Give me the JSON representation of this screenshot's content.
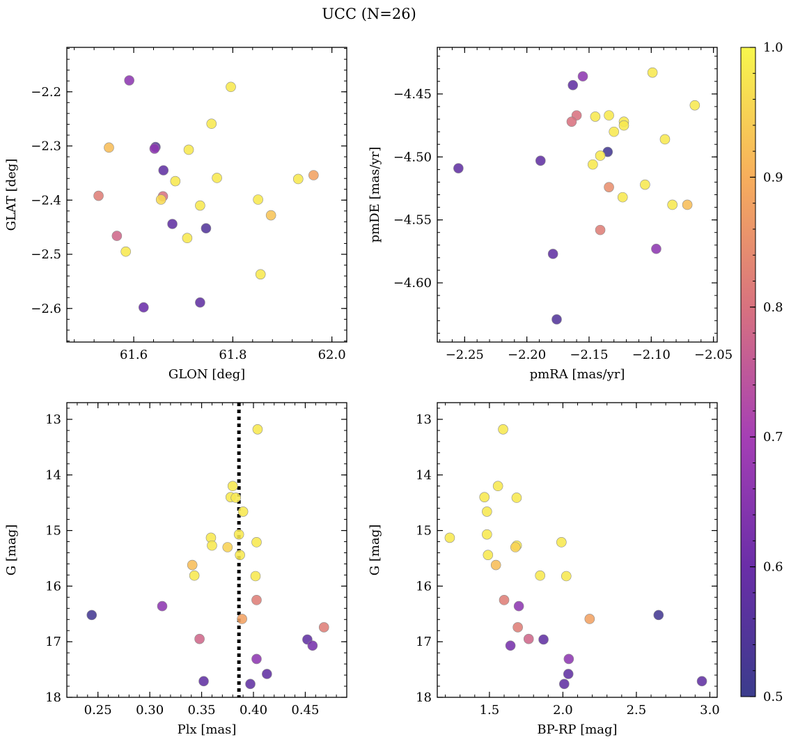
{
  "figure": {
    "title": "UCC (N=26)"
  },
  "chart_data": [
    {
      "type": "scatter",
      "panel": "top-left",
      "xlabel": "GLON [deg]",
      "ylabel": "GLAT [deg]",
      "xlim": [
        61.465,
        62.03
      ],
      "ylim": [
        -2.662,
        -2.118
      ],
      "x_inverted": false,
      "y_inverted": false,
      "xticks": [
        61.6,
        61.8,
        62.0
      ],
      "xtick_labels": [
        "61.6",
        "61.8",
        "62.0"
      ],
      "yticks": [
        -2.2,
        -2.3,
        -2.4,
        -2.5,
        -2.6
      ],
      "ytick_labels": [
        "−2.2",
        "−2.3",
        "−2.4",
        "−2.5",
        "−2.6"
      ],
      "points": [
        {
          "x": 61.591,
          "y": -2.179,
          "c": 0.66
        },
        {
          "x": 61.796,
          "y": -2.191,
          "c": 0.98
        },
        {
          "x": 61.757,
          "y": -2.259,
          "c": 0.98
        },
        {
          "x": 61.644,
          "y": -2.302,
          "c": 0.55
        },
        {
          "x": 61.642,
          "y": -2.305,
          "c": 0.66
        },
        {
          "x": 61.55,
          "y": -2.303,
          "c": 0.92
        },
        {
          "x": 61.711,
          "y": -2.307,
          "c": 0.98
        },
        {
          "x": 61.66,
          "y": -2.345,
          "c": 0.58
        },
        {
          "x": 61.963,
          "y": -2.354,
          "c": 0.88
        },
        {
          "x": 61.932,
          "y": -2.361,
          "c": 0.98
        },
        {
          "x": 61.768,
          "y": -2.359,
          "c": 0.98
        },
        {
          "x": 61.684,
          "y": -2.365,
          "c": 0.98
        },
        {
          "x": 61.659,
          "y": -2.393,
          "c": 0.8
        },
        {
          "x": 61.529,
          "y": -2.392,
          "c": 0.82
        },
        {
          "x": 61.655,
          "y": -2.399,
          "c": 0.96
        },
        {
          "x": 61.851,
          "y": -2.399,
          "c": 0.98
        },
        {
          "x": 61.734,
          "y": -2.41,
          "c": 0.98
        },
        {
          "x": 61.877,
          "y": -2.428,
          "c": 0.93
        },
        {
          "x": 61.678,
          "y": -2.444,
          "c": 0.58
        },
        {
          "x": 61.746,
          "y": -2.452,
          "c": 0.55
        },
        {
          "x": 61.566,
          "y": -2.466,
          "c": 0.78
        },
        {
          "x": 61.708,
          "y": -2.47,
          "c": 0.98
        },
        {
          "x": 61.584,
          "y": -2.495,
          "c": 0.98
        },
        {
          "x": 61.856,
          "y": -2.537,
          "c": 0.98
        },
        {
          "x": 61.734,
          "y": -2.589,
          "c": 0.58
        },
        {
          "x": 61.62,
          "y": -2.598,
          "c": 0.6
        }
      ]
    },
    {
      "type": "scatter",
      "panel": "top-right",
      "xlabel": "pmRA [mas/yr]",
      "ylabel": "pmDE [mas/yr]",
      "xlim": [
        -2.272,
        -2.047
      ],
      "ylim": [
        -4.647,
        -4.413
      ],
      "x_inverted": false,
      "y_inverted": false,
      "xticks": [
        -2.25,
        -2.2,
        -2.15,
        -2.1,
        -2.05
      ],
      "xtick_labels": [
        "−2.25",
        "−2.20",
        "−2.15",
        "−2.10",
        "−2.05"
      ],
      "yticks": [
        -4.45,
        -4.5,
        -4.55,
        -4.6
      ],
      "ytick_labels": [
        "−4.45",
        "−4.50",
        "−4.55",
        "−4.60"
      ],
      "points": [
        {
          "x": -2.099,
          "y": -4.433,
          "c": 0.98
        },
        {
          "x": -2.155,
          "y": -4.436,
          "c": 0.66
        },
        {
          "x": -2.163,
          "y": -4.443,
          "c": 0.58
        },
        {
          "x": -2.065,
          "y": -4.459,
          "c": 0.98
        },
        {
          "x": -2.16,
          "y": -4.467,
          "c": 0.8
        },
        {
          "x": -2.164,
          "y": -4.472,
          "c": 0.8
        },
        {
          "x": -2.145,
          "y": -4.468,
          "c": 0.98
        },
        {
          "x": -2.134,
          "y": -4.467,
          "c": 0.98
        },
        {
          "x": -2.122,
          "y": -4.472,
          "c": 0.98
        },
        {
          "x": -2.122,
          "y": -4.475,
          "c": 0.98
        },
        {
          "x": -2.13,
          "y": -4.48,
          "c": 0.98
        },
        {
          "x": -2.089,
          "y": -4.486,
          "c": 0.98
        },
        {
          "x": -2.135,
          "y": -4.496,
          "c": 0.52
        },
        {
          "x": -2.141,
          "y": -4.499,
          "c": 0.98
        },
        {
          "x": -2.189,
          "y": -4.503,
          "c": 0.58
        },
        {
          "x": -2.147,
          "y": -4.506,
          "c": 0.98
        },
        {
          "x": -2.255,
          "y": -4.509,
          "c": 0.58
        },
        {
          "x": -2.105,
          "y": -4.522,
          "c": 0.98
        },
        {
          "x": -2.134,
          "y": -4.524,
          "c": 0.85
        },
        {
          "x": -2.123,
          "y": -4.532,
          "c": 0.98
        },
        {
          "x": -2.083,
          "y": -4.538,
          "c": 0.98
        },
        {
          "x": -2.071,
          "y": -4.538,
          "c": 0.92
        },
        {
          "x": -2.141,
          "y": -4.558,
          "c": 0.82
        },
        {
          "x": -2.096,
          "y": -4.573,
          "c": 0.66
        },
        {
          "x": -2.179,
          "y": -4.577,
          "c": 0.58
        },
        {
          "x": -2.176,
          "y": -4.629,
          "c": 0.55
        }
      ]
    },
    {
      "type": "scatter",
      "panel": "bottom-left",
      "xlabel": "Plx [mas]",
      "ylabel": "G [mag]",
      "xlim": [
        0.22,
        0.49
      ],
      "ylim": [
        18.0,
        12.7
      ],
      "x_inverted": false,
      "y_inverted": true,
      "xticks": [
        0.25,
        0.3,
        0.35,
        0.4,
        0.45
      ],
      "xtick_labels": [
        "0.25",
        "0.30",
        "0.35",
        "0.40",
        "0.45"
      ],
      "yticks": [
        13,
        14,
        15,
        16,
        17,
        18
      ],
      "ytick_labels": [
        "13",
        "14",
        "15",
        "16",
        "17",
        "18"
      ],
      "reference_line": {
        "x": 0.386,
        "style": "dotted"
      },
      "points": [
        {
          "x": 0.404,
          "y": 13.18,
          "c": 0.98
        },
        {
          "x": 0.38,
          "y": 14.2,
          "c": 0.98
        },
        {
          "x": 0.378,
          "y": 14.4,
          "c": 0.98
        },
        {
          "x": 0.383,
          "y": 14.41,
          "c": 0.98
        },
        {
          "x": 0.39,
          "y": 14.66,
          "c": 0.98
        },
        {
          "x": 0.386,
          "y": 15.07,
          "c": 0.98
        },
        {
          "x": 0.359,
          "y": 15.13,
          "c": 0.98
        },
        {
          "x": 0.403,
          "y": 15.21,
          "c": 0.98
        },
        {
          "x": 0.36,
          "y": 15.27,
          "c": 0.98
        },
        {
          "x": 0.375,
          "y": 15.3,
          "c": 0.95
        },
        {
          "x": 0.387,
          "y": 15.44,
          "c": 0.98
        },
        {
          "x": 0.341,
          "y": 15.62,
          "c": 0.92
        },
        {
          "x": 0.343,
          "y": 15.81,
          "c": 0.98
        },
        {
          "x": 0.402,
          "y": 15.82,
          "c": 0.98
        },
        {
          "x": 0.403,
          "y": 16.25,
          "c": 0.82
        },
        {
          "x": 0.312,
          "y": 16.36,
          "c": 0.66
        },
        {
          "x": 0.244,
          "y": 16.52,
          "c": 0.52
        },
        {
          "x": 0.389,
          "y": 16.59,
          "c": 0.88
        },
        {
          "x": 0.468,
          "y": 16.74,
          "c": 0.82
        },
        {
          "x": 0.348,
          "y": 16.95,
          "c": 0.78
        },
        {
          "x": 0.452,
          "y": 16.96,
          "c": 0.58
        },
        {
          "x": 0.457,
          "y": 17.07,
          "c": 0.62
        },
        {
          "x": 0.403,
          "y": 17.31,
          "c": 0.66
        },
        {
          "x": 0.413,
          "y": 17.58,
          "c": 0.58
        },
        {
          "x": 0.352,
          "y": 17.71,
          "c": 0.58
        },
        {
          "x": 0.397,
          "y": 17.76,
          "c": 0.58
        }
      ]
    },
    {
      "type": "scatter",
      "panel": "bottom-right",
      "xlabel": "BP-RP [mag]",
      "ylabel": "G [mag]",
      "xlim": [
        1.145,
        3.05
      ],
      "ylim": [
        18.0,
        12.7
      ],
      "x_inverted": false,
      "y_inverted": true,
      "xticks": [
        1.5,
        2.0,
        2.5,
        3.0
      ],
      "xtick_labels": [
        "1.5",
        "2.0",
        "2.5",
        "3.0"
      ],
      "yticks": [
        13,
        14,
        15,
        16,
        17,
        18
      ],
      "ytick_labels": [
        "13",
        "14",
        "15",
        "16",
        "17",
        "18"
      ],
      "points": [
        {
          "x": 1.593,
          "y": 13.18,
          "c": 0.98
        },
        {
          "x": 1.558,
          "y": 14.2,
          "c": 0.98
        },
        {
          "x": 1.466,
          "y": 14.4,
          "c": 0.98
        },
        {
          "x": 1.685,
          "y": 14.41,
          "c": 0.98
        },
        {
          "x": 1.483,
          "y": 14.66,
          "c": 0.98
        },
        {
          "x": 1.483,
          "y": 15.07,
          "c": 0.98
        },
        {
          "x": 1.23,
          "y": 15.13,
          "c": 0.98
        },
        {
          "x": 1.99,
          "y": 15.21,
          "c": 0.98
        },
        {
          "x": 1.686,
          "y": 15.27,
          "c": 0.98
        },
        {
          "x": 1.677,
          "y": 15.3,
          "c": 0.95
        },
        {
          "x": 1.49,
          "y": 15.44,
          "c": 0.98
        },
        {
          "x": 1.544,
          "y": 15.62,
          "c": 0.92
        },
        {
          "x": 1.845,
          "y": 15.81,
          "c": 0.98
        },
        {
          "x": 2.023,
          "y": 15.82,
          "c": 0.98
        },
        {
          "x": 1.6,
          "y": 16.25,
          "c": 0.82
        },
        {
          "x": 1.7,
          "y": 16.36,
          "c": 0.66
        },
        {
          "x": 2.651,
          "y": 16.52,
          "c": 0.52
        },
        {
          "x": 2.182,
          "y": 16.59,
          "c": 0.88
        },
        {
          "x": 1.693,
          "y": 16.74,
          "c": 0.82
        },
        {
          "x": 1.767,
          "y": 16.95,
          "c": 0.78
        },
        {
          "x": 1.868,
          "y": 16.96,
          "c": 0.58
        },
        {
          "x": 1.643,
          "y": 17.07,
          "c": 0.62
        },
        {
          "x": 2.04,
          "y": 17.31,
          "c": 0.66
        },
        {
          "x": 2.037,
          "y": 17.58,
          "c": 0.58
        },
        {
          "x": 2.946,
          "y": 17.71,
          "c": 0.58
        },
        {
          "x": 2.009,
          "y": 17.76,
          "c": 0.58
        }
      ]
    }
  ],
  "colorbar": {
    "colormap": "plasma",
    "vmin": 0.5,
    "vmax": 1.0,
    "ticks": [
      0.5,
      0.6,
      0.7,
      0.8,
      0.9,
      1.0
    ],
    "tick_labels": [
      "0.5",
      "0.6",
      "0.7",
      "0.8",
      "0.9",
      "1.0"
    ]
  },
  "style": {
    "marker_edge_color": "#8c8c8c",
    "marker_alpha": 0.88,
    "reference_line_color": "#000000"
  }
}
